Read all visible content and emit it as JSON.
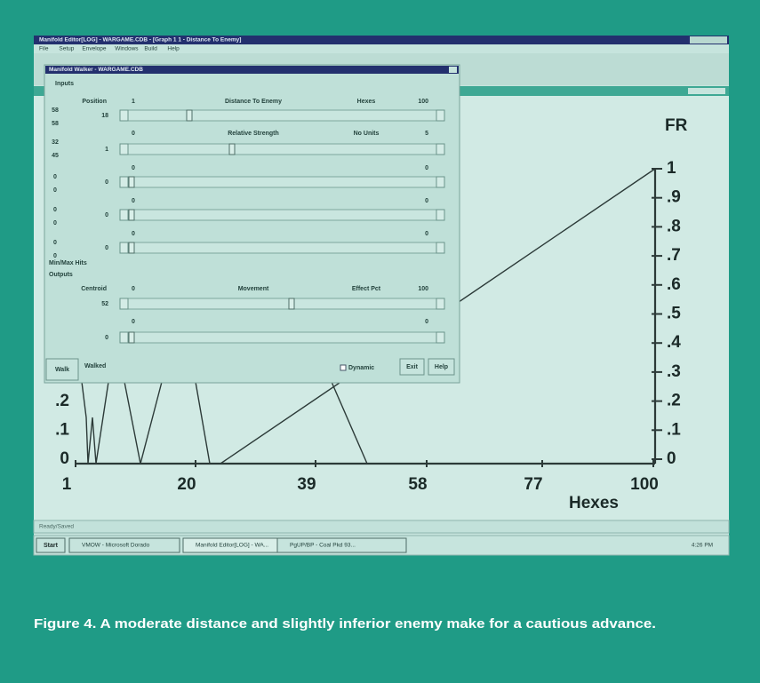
{
  "app": {
    "title": "Manifold Editor[LOG] - WARGAME.CDB - [Graph 1 1 - Distance To Enemy]",
    "menu": [
      "File",
      "Setup",
      "Envelope",
      "Windows",
      "Build",
      "Help"
    ]
  },
  "walker": {
    "title": "Manifold Walker - WARGAME.CDB",
    "inputs_label": "Inputs",
    "inputs": [
      {
        "left": [
          "58",
          "58"
        ],
        "name": "Position",
        "min": "1",
        "variable": "Distance To Enemy",
        "unit": "Hexes",
        "max": "100",
        "value": "18"
      },
      {
        "left": [
          "32",
          "45"
        ],
        "min": "0",
        "variable": "Relative Strength",
        "unit": "No Units",
        "max": "5",
        "value": "1"
      },
      {
        "left": [
          "0",
          "0"
        ],
        "min": "0",
        "max": "0",
        "value": "0"
      },
      {
        "left": [
          "0",
          "0"
        ],
        "min": "0",
        "max": "0",
        "value": "0"
      },
      {
        "left": [
          "0",
          "0"
        ],
        "min": "0",
        "max": "0",
        "value": "0"
      }
    ],
    "minmax_label": "Min/Max Hits",
    "outputs_label": "Outputs",
    "outputs": [
      {
        "name": "Centroid",
        "min": "0",
        "variable": "Movement",
        "unit": "Effect Pct",
        "max": "100",
        "value": "52"
      },
      {
        "min": "0",
        "max": "0",
        "value": "0"
      }
    ],
    "footer": {
      "walk": "Walk",
      "walked": "Walked",
      "dynamic": "Dynamic",
      "exit": "Exit",
      "help": "Help"
    }
  },
  "graph": {
    "y_label": "FR",
    "right_ticks": [
      "1",
      ".9",
      ".8",
      ".7",
      ".6",
      ".5",
      ".4",
      ".3",
      ".2",
      ".1",
      "0"
    ],
    "left_ticks": [
      ".2",
      ".1",
      "0"
    ],
    "x_ticks": [
      "1",
      "20",
      "39",
      "58",
      "77",
      "100"
    ],
    "x_label": "Hexes"
  },
  "status": "Ready/Saved",
  "taskbar": {
    "start": "Start",
    "tasks": [
      "VMOW - Microsoft Dorado",
      "Manifold Editor[LOG] - WA...",
      "PgUP/BP - Coal Pkd 93..."
    ],
    "clock": "4:26 PM"
  },
  "caption": "Figure 4. A moderate distance and slightly inferior enemy make for a cautious advance."
}
